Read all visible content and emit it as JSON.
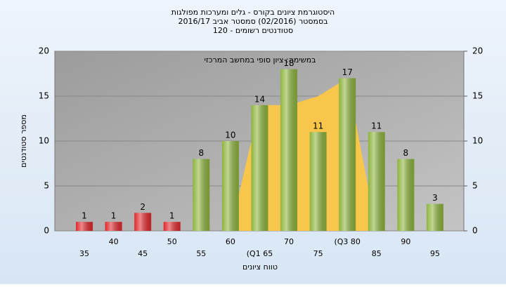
{
  "chart_data": {
    "type": "bar",
    "title": "היסטוגרמת ציונים בקורס - גלים ומערכות מפולגות",
    "subtitle": "בסמסטר (02/2016) סמסטר אביב 2016/17",
    "subtitle2": "סטודנטים רשומים - 120",
    "annotation": "במשימה: ציון סופי במחשב המרכזי",
    "x_label": "טווח ציונים",
    "y_label": "מספר סטודנטים",
    "categories": [
      "35",
      "40",
      "45",
      "50",
      "55",
      "60",
      "(Q1 65",
      "70",
      "75",
      "(Q3 80",
      "85",
      "90",
      "95"
    ],
    "values": [
      1,
      1,
      2,
      1,
      8,
      10,
      14,
      18,
      11,
      17,
      11,
      8,
      3
    ],
    "colors": [
      "#e0282c",
      "#e0282c",
      "#e0282c",
      "#e0282c",
      "#8db43c",
      "#8db43c",
      "#8db43c",
      "#8db43c",
      "#8db43c",
      "#8db43c",
      "#8db43c",
      "#8db43c",
      "#8db43c"
    ],
    "area": {
      "color": "#f7c64a",
      "values": [
        null,
        null,
        null,
        null,
        null,
        0,
        14,
        14,
        15,
        17,
        0,
        null,
        null
      ]
    },
    "ylim": [
      0,
      20
    ],
    "yticks": [
      0,
      5,
      10,
      15,
      20
    ],
    "y2lim": [
      0,
      20
    ],
    "y2ticks": [
      0,
      5,
      10,
      15,
      20
    ],
    "grid": true
  }
}
